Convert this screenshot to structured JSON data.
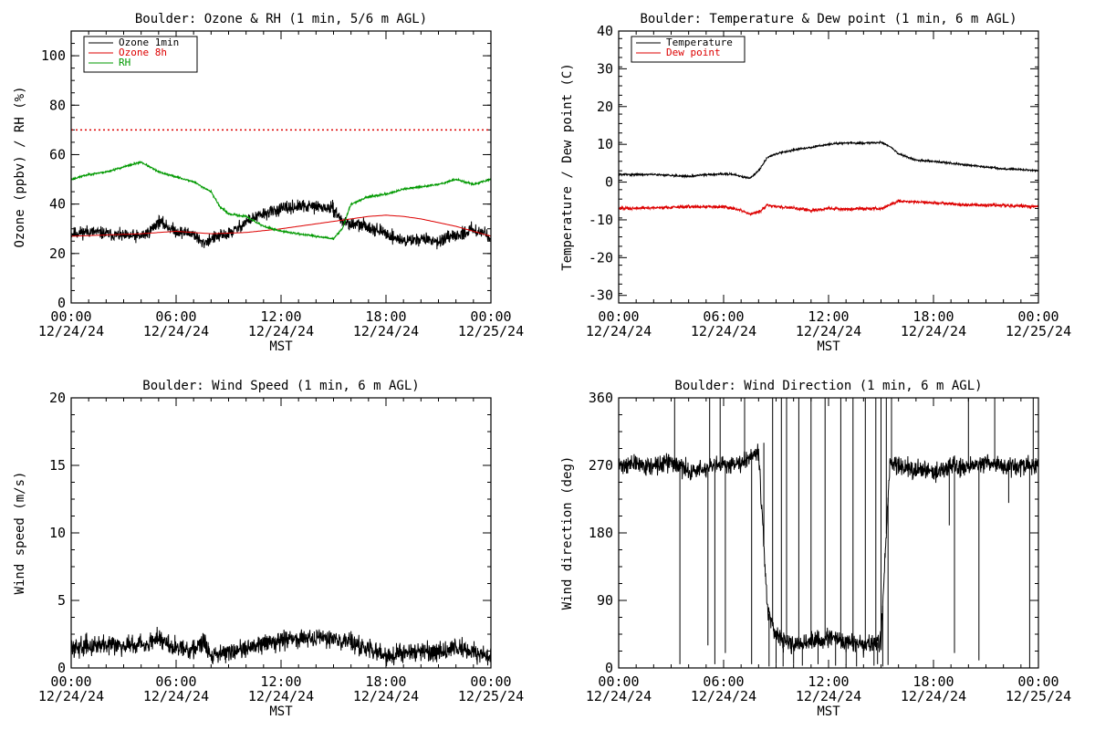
{
  "chart_data": [
    {
      "type": "line",
      "title": "Boulder: Ozone & RH (1 min, 5/6 m AGL)",
      "ylabel": "Ozone (ppbv) / RH (%)",
      "xlabel": "MST",
      "ylim": [
        0,
        110
      ],
      "yticks": [
        "0",
        "20",
        "40",
        "60",
        "80",
        "100"
      ],
      "ytick_values": [
        0,
        20,
        40,
        60,
        80,
        100
      ],
      "xlim_hours": [
        0,
        24
      ],
      "xticks": [
        {
          "time": "00:00",
          "date": "12/24/24"
        },
        {
          "time": "06:00",
          "date": "12/24/24"
        },
        {
          "time": "12:00",
          "date": "12/24/24"
        },
        {
          "time": "18:00",
          "date": "12/24/24"
        },
        {
          "time": "00:00",
          "date": "12/25/24"
        }
      ],
      "reference_line": {
        "y": 70,
        "color": "#dd0000",
        "style": "dotted"
      },
      "legend": "top-left",
      "series": [
        {
          "name": "Ozone 1min",
          "color": "#000000",
          "noise": 2.5,
          "seed": 11,
          "x": [
            0,
            1,
            2,
            3,
            4,
            4.5,
            5,
            5.5,
            6,
            7,
            7.5,
            8,
            9,
            9.5,
            10,
            11,
            12,
            13,
            14,
            15,
            15.5,
            16,
            17,
            18,
            19,
            20,
            21,
            22,
            23,
            24
          ],
          "y": [
            28,
            29,
            28,
            27,
            27,
            29,
            33,
            31,
            29,
            28,
            24,
            26,
            28,
            30,
            33,
            36,
            38,
            39,
            39,
            38,
            33,
            32,
            31,
            28,
            25,
            26,
            25,
            27,
            30,
            27
          ]
        },
        {
          "name": "Ozone 8h",
          "color": "#dd0000",
          "noise": 0,
          "seed": 0,
          "x": [
            0,
            2,
            4,
            6,
            8,
            10,
            12,
            14,
            16,
            17,
            18,
            19,
            20,
            22,
            24
          ],
          "y": [
            27,
            27.5,
            28,
            29,
            28,
            28.5,
            30,
            32,
            34,
            35,
            35.5,
            35,
            34,
            31,
            27
          ]
        },
        {
          "name": "RH",
          "color": "#009900",
          "noise": 0.4,
          "seed": 23,
          "x": [
            0,
            1,
            2,
            3,
            3.5,
            4,
            4.5,
            5,
            6,
            7,
            8,
            8.5,
            9,
            10,
            11,
            12,
            13,
            14,
            15,
            15.5,
            16,
            17,
            18,
            19,
            20,
            21,
            22,
            23,
            24
          ],
          "y": [
            50,
            52,
            53,
            55,
            56,
            57,
            55,
            53,
            51,
            49,
            45,
            39,
            36,
            35,
            31,
            29,
            28,
            27,
            26,
            30,
            40,
            43,
            44,
            46,
            47,
            48,
            50,
            48,
            50
          ]
        }
      ]
    },
    {
      "type": "line",
      "title": "Boulder: Temperature & Dew point (1 min, 6 m AGL)",
      "ylabel": "Temperature / Dew point (C)",
      "xlabel": "MST",
      "ylim": [
        -32,
        40
      ],
      "yticks": [
        "-30",
        "-20",
        "-10",
        "0",
        "10",
        "20",
        "30",
        "40"
      ],
      "ytick_values": [
        -30,
        -20,
        -10,
        0,
        10,
        20,
        30,
        40
      ],
      "xlim_hours": [
        0,
        24
      ],
      "xticks": [
        {
          "time": "00:00",
          "date": "12/24/24"
        },
        {
          "time": "06:00",
          "date": "12/24/24"
        },
        {
          "time": "12:00",
          "date": "12/24/24"
        },
        {
          "time": "18:00",
          "date": "12/24/24"
        },
        {
          "time": "00:00",
          "date": "12/25/24"
        }
      ],
      "legend": "top-left",
      "series": [
        {
          "name": "Temperature",
          "color": "#000000",
          "noise": 0.25,
          "seed": 31,
          "x": [
            0,
            1,
            2,
            3,
            4,
            5,
            6,
            6.5,
            7,
            7.5,
            8,
            8.5,
            9,
            10,
            11,
            12,
            13,
            14,
            15,
            15.5,
            16,
            17,
            18,
            19,
            20,
            21,
            22,
            23,
            24
          ],
          "y": [
            2,
            2,
            2,
            1.8,
            1.5,
            2,
            2.2,
            2,
            1.5,
            1,
            3,
            6.5,
            7.5,
            8.5,
            9.2,
            10,
            10.4,
            10.3,
            10.5,
            9.5,
            7.5,
            5.8,
            5.5,
            5,
            4.5,
            4,
            3.5,
            3.3,
            3
          ]
        },
        {
          "name": "Dew point",
          "color": "#dd0000",
          "noise": 0.4,
          "seed": 47,
          "x": [
            0,
            2,
            4,
            6,
            7,
            7.5,
            8,
            8.5,
            9,
            10,
            11,
            12,
            13,
            14,
            15,
            15.5,
            16,
            18,
            20,
            22,
            24
          ],
          "y": [
            -7,
            -6.8,
            -6.5,
            -6.5,
            -7.5,
            -8.5,
            -8,
            -6,
            -6.5,
            -6.8,
            -7.5,
            -7,
            -7.2,
            -7,
            -7,
            -6,
            -5,
            -5.5,
            -6,
            -6.2,
            -6.5
          ]
        }
      ]
    },
    {
      "type": "line",
      "title": "Boulder: Wind Speed (1 min, 6 m AGL)",
      "ylabel": "Wind speed (m/s)",
      "xlabel": "MST",
      "ylim": [
        0,
        20
      ],
      "yticks": [
        "0",
        "5",
        "10",
        "15",
        "20"
      ],
      "ytick_values": [
        0,
        5,
        10,
        15,
        20
      ],
      "xlim_hours": [
        0,
        24
      ],
      "xticks": [
        {
          "time": "00:00",
          "date": "12/24/24"
        },
        {
          "time": "06:00",
          "date": "12/24/24"
        },
        {
          "time": "12:00",
          "date": "12/24/24"
        },
        {
          "time": "18:00",
          "date": "12/24/24"
        },
        {
          "time": "00:00",
          "date": "12/25/24"
        }
      ],
      "series": [
        {
          "name": "",
          "color": "#000000",
          "noise": 0.7,
          "seed": 59,
          "clip_min": 0,
          "x": [
            0,
            2,
            4,
            5,
            6,
            7,
            7.5,
            8,
            9,
            10,
            11,
            12,
            13,
            14,
            15,
            16,
            17,
            18,
            19,
            20,
            21,
            22,
            23,
            24
          ],
          "y": [
            1.5,
            1.8,
            1.7,
            2.2,
            1.5,
            1.3,
            2,
            1,
            1.2,
            1.4,
            1.8,
            2,
            2.2,
            2.3,
            2.2,
            1.8,
            1.5,
            0.8,
            1.2,
            1.3,
            1.2,
            1.5,
            1.1,
            0.9
          ]
        }
      ]
    },
    {
      "type": "line",
      "title": "Boulder: Wind Direction (1 min, 6 m AGL)",
      "ylabel": "Wind direction (deg)",
      "xlabel": "MST",
      "ylim": [
        0,
        360
      ],
      "yticks": [
        "0",
        "90",
        "180",
        "270",
        "360"
      ],
      "ytick_values": [
        0,
        90,
        180,
        270,
        360
      ],
      "xlim_hours": [
        0,
        24
      ],
      "xticks": [
        {
          "time": "00:00",
          "date": "12/24/24"
        },
        {
          "time": "06:00",
          "date": "12/24/24"
        },
        {
          "time": "12:00",
          "date": "12/24/24"
        },
        {
          "time": "18:00",
          "date": "12/24/24"
        },
        {
          "time": "00:00",
          "date": "12/25/24"
        }
      ],
      "series": [
        {
          "name": "",
          "color": "#000000",
          "noise": 12,
          "seed": 71,
          "clip_min": 0,
          "clip_max": 360,
          "x": [
            0,
            1,
            2,
            3,
            4,
            5,
            6,
            7,
            8,
            8.5,
            9,
            10,
            11,
            12,
            13,
            14,
            15,
            15.5,
            16,
            17,
            18,
            19,
            20,
            21,
            22,
            23,
            24
          ],
          "y": [
            270,
            272,
            268,
            275,
            262,
            265,
            270,
            275,
            290,
            80,
            40,
            30,
            35,
            40,
            35,
            30,
            35,
            275,
            270,
            265,
            260,
            270,
            268,
            275,
            270,
            268,
            272
          ]
        },
        {
          "name": "",
          "color": "#000000",
          "noise": 0,
          "seed": 0,
          "spikes": true,
          "x": [
            3.2,
            3.5,
            4.5,
            5.1,
            5.2,
            5.5,
            5.8,
            6.1,
            6.3,
            7.2,
            7.6,
            8.3,
            8.6,
            8.8,
            9.0,
            9.3,
            9.4,
            9.6,
            10.0,
            10.3,
            10.5,
            11.0,
            11.4,
            11.8,
            12.4,
            12.7,
            13.0,
            13.4,
            13.6,
            14.1,
            14.6,
            14.7,
            14.8,
            15.0,
            15.1,
            15.3,
            15.4,
            15.6,
            18.9,
            19.2,
            20.0,
            20.6,
            21.5,
            22.3,
            23.5,
            23.7
          ],
          "y": [
            360,
            5,
            270,
            30,
            360,
            5,
            360,
            20,
            270,
            360,
            5,
            300,
            2,
            360,
            5,
            360,
            2,
            360,
            5,
            360,
            3,
            360,
            5,
            360,
            3,
            360,
            4,
            360,
            2,
            360,
            3,
            360,
            5,
            360,
            2,
            360,
            4,
            360,
            190,
            20,
            360,
            10,
            360,
            220,
            0,
            360
          ]
        }
      ]
    }
  ]
}
